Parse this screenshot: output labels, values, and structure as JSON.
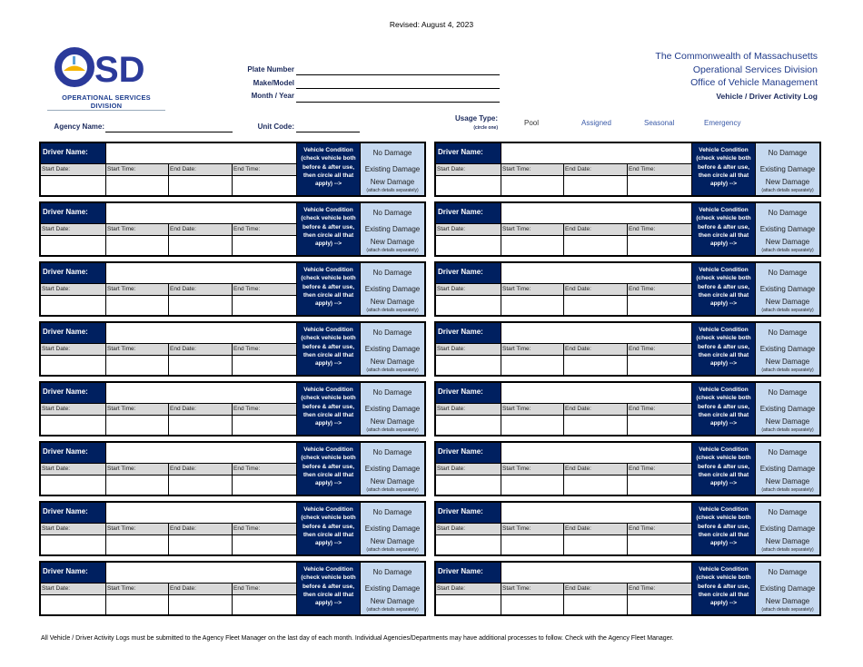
{
  "revised": "Revised: August 4, 2023",
  "logo": {
    "letters": "OSD",
    "subtitle": "OPERATIONAL SERVICES DIVISION",
    "colors": {
      "primary": "#2b3a9a",
      "accent": "#f5b400"
    }
  },
  "vehicle_fields": [
    {
      "label": "Plate Number",
      "value": ""
    },
    {
      "label": "Make/Model",
      "value": ""
    },
    {
      "label": "Month / Year",
      "value": ""
    }
  ],
  "header": {
    "line1": "The Commonwealth of Massachusetts",
    "line2": "Operational Services Division",
    "line3": "Office of Vehicle Management",
    "title": "Vehicle / Driver Activity Log"
  },
  "agency_name": {
    "label": "Agency Name:",
    "value": ""
  },
  "unit_code": {
    "label": "Unit Code:",
    "value": ""
  },
  "usage_type": {
    "label": "Usage Type:",
    "hint": "(circle one)",
    "options": [
      "Pool",
      "Assigned",
      "Seasonal",
      "Emergency"
    ]
  },
  "entry": {
    "driver_label": "Driver Name:",
    "start_date": "Start Date:",
    "start_time": "Start Time:",
    "end_date": "End Date:",
    "end_time": "End Time:",
    "condition_label": "Vehicle Condition (check vehicle both before & after use, then circle all that apply) -->",
    "no_damage": "No Damage",
    "existing_damage": "Existing Damage",
    "new_damage": "New Damage",
    "new_damage_note": "(attach details separately)"
  },
  "entry_count": 16,
  "colors": {
    "navy": "#002060",
    "light_blue": "#c6d9f0",
    "gray": "#d9d9d9"
  },
  "footer": "All Vehicle / Driver Activity Logs must be submitted to the Agency Fleet Manager on the last day of each month. Individual Agencies/Departments may have additional processes to follow. Check with the Agency Fleet Manager."
}
